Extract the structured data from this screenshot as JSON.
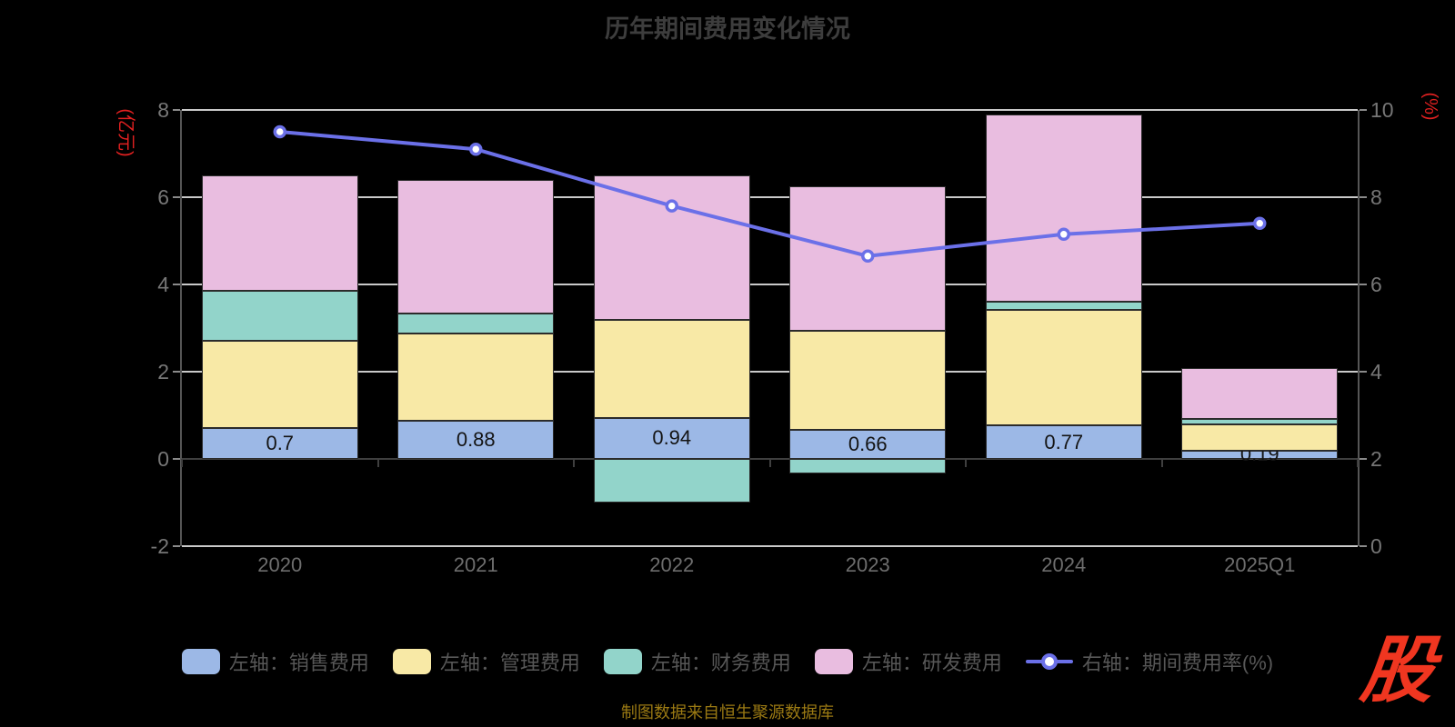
{
  "title": "历年期间费用变化情况",
  "footer": "制图数据来自恒生聚源数据库",
  "logo_text": "股",
  "colors": {
    "sales": "#9cb8e6",
    "admin": "#f8e9a6",
    "finance": "#92d4ca",
    "rd": "#e9bde0",
    "line": "#6b70e8",
    "grid": "#c9c9c9",
    "axis_name_red": "#e02020",
    "footer_gold": "#9b7a13",
    "logo_red": "#f03620"
  },
  "left_axis": {
    "name": "(亿元)",
    "ticks": [
      8,
      6,
      4,
      2,
      0,
      -2
    ],
    "min": -2,
    "max": 8
  },
  "right_axis": {
    "name": "(%)",
    "ticks": [
      10,
      8,
      6,
      4,
      2,
      0
    ],
    "min": 0,
    "max": 10
  },
  "chart_data": {
    "type": "bar",
    "subtype": "stacked-bars-with-line",
    "title": "历年期间费用变化情况",
    "categories": [
      "2020",
      "2021",
      "2022",
      "2023",
      "2024",
      "2025Q1"
    ],
    "grid": true,
    "legend_position": "bottom",
    "ylim_left": [
      -2,
      8
    ],
    "ylim_right": [
      0,
      10
    ],
    "series": [
      {
        "name": "左轴：销售费用",
        "type": "bar",
        "axis": "left",
        "color_key": "sales",
        "values": [
          0.7,
          0.88,
          0.94,
          0.66,
          0.77,
          0.19
        ],
        "labels": [
          "0.7",
          "0.88",
          "0.94",
          "0.66",
          "0.77",
          "0.19"
        ]
      },
      {
        "name": "左轴：管理费用",
        "type": "bar",
        "axis": "left",
        "color_key": "admin",
        "values": [
          2.0,
          2.0,
          2.25,
          2.28,
          2.65,
          0.6
        ]
      },
      {
        "name": "左轴：财务费用",
        "type": "bar",
        "axis": "left",
        "color_key": "finance",
        "values": [
          1.15,
          0.45,
          -1.0,
          -0.33,
          0.18,
          0.13
        ]
      },
      {
        "name": "左轴：研发费用",
        "type": "bar",
        "axis": "left",
        "color_key": "rd",
        "values": [
          2.65,
          3.07,
          3.31,
          3.31,
          4.3,
          1.16
        ]
      },
      {
        "name": "右轴：期间费用率(%)",
        "type": "line",
        "axis": "right",
        "color_key": "line",
        "values": [
          9.5,
          9.1,
          7.8,
          6.65,
          7.15,
          7.4
        ]
      }
    ]
  }
}
